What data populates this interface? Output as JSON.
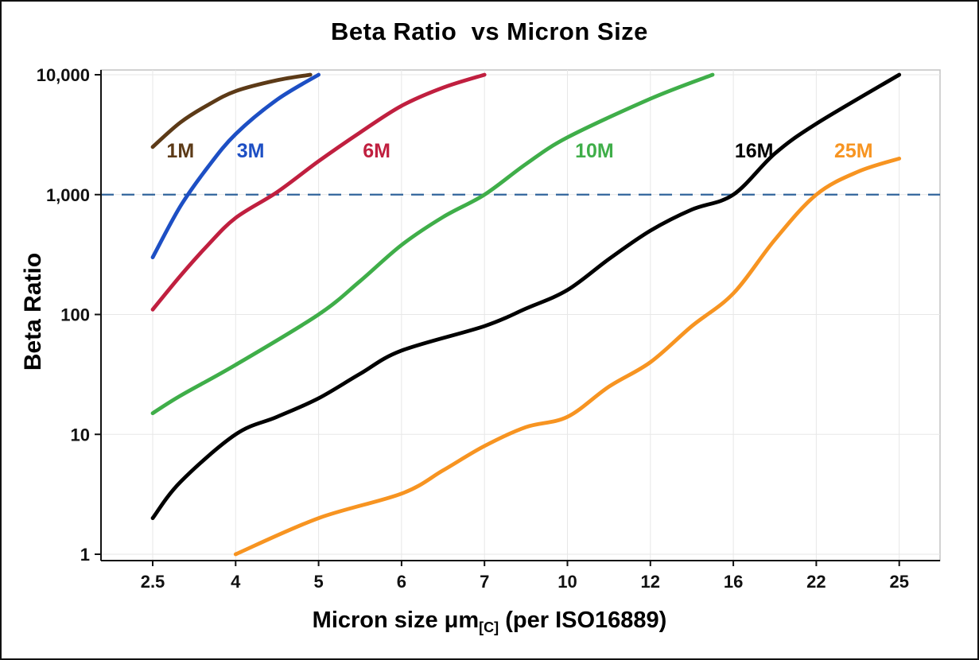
{
  "chart_data": {
    "type": "line",
    "title": "Beta Ratio  vs Micron Size",
    "ylabel": "Beta Ratio",
    "xlabel": {
      "main": "Micron size μm",
      "sub": "[C]",
      "rest": " (per ISO16889)"
    },
    "x_scale": "point-categorical",
    "y_scale": "log",
    "ylim": [
      1,
      10000
    ],
    "grid": {
      "show": true,
      "color": "#e7e7e7"
    },
    "categories": [
      "2.5",
      "4",
      "5",
      "6",
      "7",
      "10",
      "12",
      "16",
      "22",
      "25"
    ],
    "category_values": [
      2.5,
      4,
      5,
      6,
      7,
      10,
      12,
      16,
      22,
      25
    ],
    "y_ticks": [
      {
        "value": 1,
        "label": "1"
      },
      {
        "value": 10,
        "label": "10"
      },
      {
        "value": 100,
        "label": "100"
      },
      {
        "value": 1000,
        "label": "1,000"
      },
      {
        "value": 10000,
        "label": "10,000"
      }
    ],
    "reference_line": {
      "value": 1000,
      "color": "#31659c",
      "dash": "16 10",
      "width": 2.2
    },
    "series": [
      {
        "name": "1M",
        "color": "#5c3a17",
        "points": [
          [
            2.5,
            2500
          ],
          [
            3,
            4000
          ],
          [
            3.5,
            5600
          ],
          [
            4,
            7300
          ],
          [
            4.5,
            9000
          ],
          [
            4.9,
            10000
          ]
        ],
        "label_at": [
          3.0,
          2300
        ]
      },
      {
        "name": "3M",
        "color": "#1d4fc4",
        "points": [
          [
            2.5,
            300
          ],
          [
            3,
            800
          ],
          [
            3.5,
            1700
          ],
          [
            4,
            3200
          ],
          [
            4.5,
            6200
          ],
          [
            5,
            10000
          ]
        ],
        "label_at": [
          4.18,
          2300
        ]
      },
      {
        "name": "6M",
        "color": "#c01f3f",
        "points": [
          [
            2.5,
            110
          ],
          [
            3,
            210
          ],
          [
            3.5,
            380
          ],
          [
            4,
            640
          ],
          [
            4.5,
            1050
          ],
          [
            5,
            1900
          ],
          [
            5.5,
            3300
          ],
          [
            6,
            5500
          ],
          [
            6.5,
            7800
          ],
          [
            7,
            10000
          ]
        ],
        "label_at": [
          5.7,
          2300
        ]
      },
      {
        "name": "10M",
        "color": "#3fae49",
        "points": [
          [
            2.5,
            15
          ],
          [
            3,
            21
          ],
          [
            4,
            38
          ],
          [
            5,
            100
          ],
          [
            5.5,
            190
          ],
          [
            6,
            380
          ],
          [
            6.5,
            650
          ],
          [
            7,
            1000
          ],
          [
            8.5,
            1800
          ],
          [
            10,
            3000
          ],
          [
            12,
            6300
          ],
          [
            15,
            10000
          ]
        ],
        "label_at": [
          10.65,
          2300
        ]
      },
      {
        "name": "16M",
        "color": "#000000",
        "points": [
          [
            2.5,
            2
          ],
          [
            3,
            4
          ],
          [
            4,
            10
          ],
          [
            4.5,
            14
          ],
          [
            5,
            20
          ],
          [
            5.5,
            32
          ],
          [
            6,
            50
          ],
          [
            7,
            80
          ],
          [
            8.5,
            112
          ],
          [
            10,
            160
          ],
          [
            11,
            290
          ],
          [
            12,
            500
          ],
          [
            14,
            750
          ],
          [
            16,
            1000
          ],
          [
            19,
            2200
          ],
          [
            22,
            3900
          ],
          [
            25,
            10000
          ]
        ],
        "label_at": [
          17.5,
          2300
        ]
      },
      {
        "name": "25M",
        "color": "#f79421",
        "points": [
          [
            4,
            1
          ],
          [
            5,
            2
          ],
          [
            6,
            3.2
          ],
          [
            6.5,
            5
          ],
          [
            7,
            8
          ],
          [
            8.5,
            11.5
          ],
          [
            10,
            14
          ],
          [
            11,
            25
          ],
          [
            12,
            40
          ],
          [
            14,
            80
          ],
          [
            16,
            150
          ],
          [
            19,
            420
          ],
          [
            22,
            1000
          ],
          [
            23.5,
            1550
          ],
          [
            25,
            2000
          ]
        ],
        "label_at": [
          23.35,
          2300
        ]
      }
    ]
  }
}
